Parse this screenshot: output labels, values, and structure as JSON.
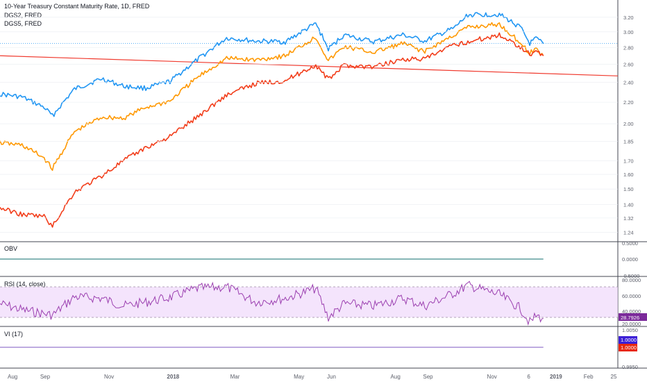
{
  "main_pane": {
    "title": "10-Year Treasury Constant Maturity Rate, 1D, FRED",
    "legend": [
      "DGS2, FRED",
      "DGS5, FRED"
    ]
  },
  "x_axis": {
    "ticks": [
      "Aug",
      "Sep",
      "Nov",
      "2018",
      "Mar",
      "May",
      "Jun",
      "Aug",
      "Sep",
      "Nov",
      "6",
      "2019",
      "Feb",
      "25"
    ],
    "bold_ticks": [
      "2018",
      "2019"
    ]
  },
  "obv_pane": {
    "title": "OBV",
    "ticks": [
      "0.5000",
      "0.0000",
      "-0.5000"
    ]
  },
  "rsi_pane": {
    "title": "RSI (14, close)",
    "ticks": [
      "80.0000",
      "60.0000",
      "40.0000",
      "20.0000"
    ],
    "current_value": "28.7926"
  },
  "vi_pane": {
    "title": "VI (17)",
    "ticks": [
      "1.0050",
      "0.9950"
    ],
    "vi_plus": "1.0000",
    "vi_minus": "1.0000"
  },
  "colors": {
    "dgs10": "#2196f3",
    "dgs5": "#ff9800",
    "dgs2": "#f23d1a",
    "trend": "#f03a2e",
    "obv": "#0c6e6e",
    "rsi": "#9b3fb0",
    "rsi_band": "#f0d9fb",
    "vi": "#7e57c2",
    "vi_plus_badge": "#3c1fd6",
    "vi_minus_badge": "#e8280f",
    "grid": "#e9ecf1",
    "rsi_badge": "#7b2a9a"
  },
  "chart_data": {
    "type": "line",
    "title": "10-Year Treasury Constant Maturity Rate, 1D, FRED",
    "x_range": [
      "2017-07-20",
      "2019-03-01"
    ],
    "y_scale": "log",
    "ylim": [
      1.2,
      3.4
    ],
    "yticks": [
      1.24,
      1.32,
      1.4,
      1.5,
      1.6,
      1.7,
      1.85,
      2.0,
      2.2,
      2.4,
      2.6,
      2.8,
      3.0,
      3.2
    ],
    "series": [
      {
        "name": "",
        "color": "#2196f3",
        "points": [
          [
            "2017-07-20",
            2.28
          ],
          [
            "2017-08-10",
            2.25
          ],
          [
            "2017-08-31",
            2.15
          ],
          [
            "2017-09-08",
            2.07
          ],
          [
            "2017-09-29",
            2.33
          ],
          [
            "2017-10-25",
            2.44
          ],
          [
            "2017-11-15",
            2.36
          ],
          [
            "2017-12-06",
            2.34
          ],
          [
            "2017-12-29",
            2.41
          ],
          [
            "2018-01-24",
            2.65
          ],
          [
            "2018-02-21",
            2.92
          ],
          [
            "2018-03-21",
            2.88
          ],
          [
            "2018-04-18",
            2.87
          ],
          [
            "2018-05-17",
            3.11
          ],
          [
            "2018-05-29",
            2.78
          ],
          [
            "2018-06-13",
            2.96
          ],
          [
            "2018-07-11",
            2.87
          ],
          [
            "2018-08-08",
            2.96
          ],
          [
            "2018-08-29",
            2.88
          ],
          [
            "2018-09-26",
            3.05
          ],
          [
            "2018-10-09",
            3.23
          ],
          [
            "2018-11-08",
            3.24
          ],
          [
            "2018-11-28",
            3.06
          ],
          [
            "2018-12-07",
            2.85
          ],
          [
            "2018-12-13",
            2.91
          ],
          [
            "2018-12-20",
            2.85
          ]
        ]
      },
      {
        "name": "DGS5, FRED",
        "color": "#ff9800",
        "points": [
          [
            "2017-07-20",
            1.84
          ],
          [
            "2017-08-10",
            1.82
          ],
          [
            "2017-08-31",
            1.72
          ],
          [
            "2017-09-08",
            1.64
          ],
          [
            "2017-09-29",
            1.93
          ],
          [
            "2017-10-25",
            2.06
          ],
          [
            "2017-11-15",
            2.05
          ],
          [
            "2017-12-06",
            2.15
          ],
          [
            "2017-12-29",
            2.21
          ],
          [
            "2018-01-24",
            2.45
          ],
          [
            "2018-02-21",
            2.67
          ],
          [
            "2018-03-21",
            2.65
          ],
          [
            "2018-04-18",
            2.7
          ],
          [
            "2018-05-17",
            2.93
          ],
          [
            "2018-05-29",
            2.64
          ],
          [
            "2018-06-13",
            2.81
          ],
          [
            "2018-07-11",
            2.74
          ],
          [
            "2018-08-08",
            2.85
          ],
          [
            "2018-08-29",
            2.75
          ],
          [
            "2018-09-26",
            2.96
          ],
          [
            "2018-10-09",
            3.06
          ],
          [
            "2018-11-08",
            3.1
          ],
          [
            "2018-11-28",
            2.86
          ],
          [
            "2018-12-07",
            2.73
          ],
          [
            "2018-12-13",
            2.78
          ],
          [
            "2018-12-20",
            2.7
          ]
        ]
      },
      {
        "name": "DGS2, FRED",
        "color": "#f23d1a",
        "points": [
          [
            "2017-07-20",
            1.38
          ],
          [
            "2017-08-10",
            1.34
          ],
          [
            "2017-08-31",
            1.33
          ],
          [
            "2017-09-08",
            1.27
          ],
          [
            "2017-09-29",
            1.48
          ],
          [
            "2017-10-25",
            1.59
          ],
          [
            "2017-11-15",
            1.7
          ],
          [
            "2017-12-06",
            1.8
          ],
          [
            "2017-12-29",
            1.89
          ],
          [
            "2018-01-24",
            2.06
          ],
          [
            "2018-02-21",
            2.27
          ],
          [
            "2018-03-21",
            2.39
          ],
          [
            "2018-04-18",
            2.42
          ],
          [
            "2018-05-17",
            2.59
          ],
          [
            "2018-05-29",
            2.43
          ],
          [
            "2018-06-13",
            2.59
          ],
          [
            "2018-07-11",
            2.57
          ],
          [
            "2018-08-08",
            2.66
          ],
          [
            "2018-08-29",
            2.66
          ],
          [
            "2018-09-26",
            2.83
          ],
          [
            "2018-10-09",
            2.87
          ],
          [
            "2018-11-08",
            2.96
          ],
          [
            "2018-11-28",
            2.81
          ],
          [
            "2018-12-07",
            2.72
          ],
          [
            "2018-12-13",
            2.75
          ],
          [
            "2018-12-20",
            2.7
          ]
        ]
      }
    ],
    "trend_line": {
      "from": [
        "2017-07-20",
        2.7
      ],
      "to": [
        "2019-03-01",
        2.47
      ]
    },
    "horizontal_level": 2.85,
    "indicators": {
      "obv": {
        "value": 0.0
      },
      "rsi": {
        "band": [
          30,
          70
        ],
        "points": [
          [
            "2017-07-20",
            48
          ],
          [
            "2017-08-10",
            40
          ],
          [
            "2017-09-08",
            33
          ],
          [
            "2017-09-29",
            57
          ],
          [
            "2017-10-25",
            55
          ],
          [
            "2017-11-15",
            45
          ],
          [
            "2017-12-06",
            50
          ],
          [
            "2017-12-29",
            56
          ],
          [
            "2018-01-24",
            68
          ],
          [
            "2018-02-21",
            70
          ],
          [
            "2018-03-21",
            50
          ],
          [
            "2018-04-18",
            55
          ],
          [
            "2018-05-17",
            68
          ],
          [
            "2018-05-29",
            30
          ],
          [
            "2018-06-13",
            48
          ],
          [
            "2018-07-11",
            45
          ],
          [
            "2018-08-08",
            55
          ],
          [
            "2018-08-29",
            45
          ],
          [
            "2018-09-26",
            62
          ],
          [
            "2018-10-09",
            72
          ],
          [
            "2018-11-08",
            60
          ],
          [
            "2018-11-28",
            42
          ],
          [
            "2018-12-07",
            23
          ],
          [
            "2018-12-13",
            32
          ],
          [
            "2018-12-20",
            28.79
          ]
        ]
      },
      "vi": {
        "value": 1.0
      }
    }
  }
}
